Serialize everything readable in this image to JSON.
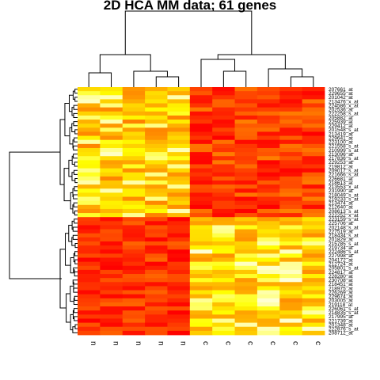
{
  "chart_data": {
    "type": "heatmap",
    "title": "2D HCA MM data; 61 genes",
    "color_scale": [
      "#ff0000",
      "#ff7f00",
      "#ffff00",
      "#ffffe0"
    ],
    "columns": [
      "n",
      "n",
      "n",
      "n",
      "n",
      "c",
      "c",
      "c",
      "c",
      "c",
      "c"
    ],
    "rows": [
      "207661_at",
      "229655_at",
      "201042_at",
      "213476_x_at",
      "224586_x_at",
      "202536_at",
      "222258_s_at",
      "205882_at",
      "225939_at",
      "229412_at",
      "201548_s_at",
      "213419_at",
      "229641_at",
      "223100_at",
      "221558_s_at",
      "210999_s_at",
      "213096_at",
      "217836_s_at",
      "229253_at",
      "219812_at",
      "209017_s_at",
      "221666_s_at",
      "226681_at",
      "218613_at",
      "213553_x_at",
      "231990_at",
      "218049_s_at",
      "219233_s_at",
      "213474_at",
      "212640_at",
      "208613_s_at",
      "222252_x_at",
      "223159_s_at",
      "225706_at",
      "202148_s_at",
      "227519_at",
      "218434_s_at",
      "201829_at",
      "215785_s_at",
      "219734_at",
      "222486_s_at",
      "227998_at",
      "204172_at",
      "212724_at",
      "205801_s_at",
      "224817_at",
      "228280_at",
      "230708_at",
      "218451_at",
      "218975_at",
      "226269_at",
      "229674_at",
      "203005_at",
      "219118_at",
      "226061_s_at",
      "214835_s_at",
      "217995_at",
      "221739_at",
      "201348_at",
      "222876_s_at",
      "208712_at"
    ],
    "row_groups": [
      {
        "rows": [
          0,
          31
        ],
        "n_values": [
          0.4,
          0.98
        ],
        "c_values": [
          0.0,
          0.4
        ]
      },
      {
        "rows": [
          32,
          60
        ],
        "n_values": [
          0.0,
          0.32
        ],
        "c_values": [
          0.45,
          1.0
        ]
      }
    ],
    "value_scale": "0 = red (low) to 1 = light yellow (high)"
  }
}
